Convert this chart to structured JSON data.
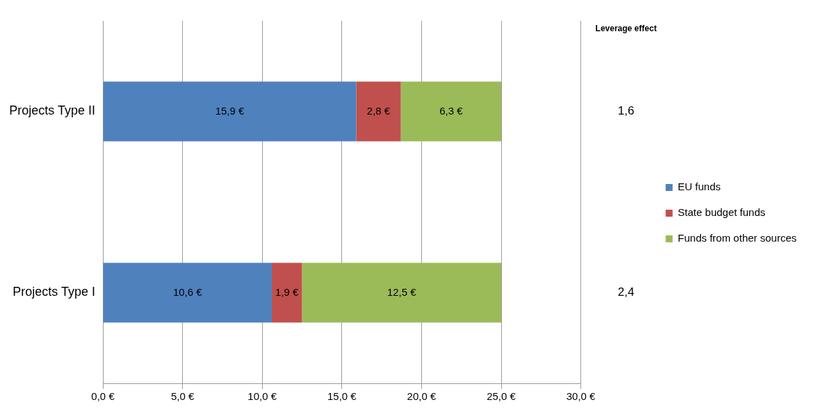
{
  "chart_data": {
    "type": "bar",
    "orientation": "horizontal",
    "stacked": true,
    "categories": [
      "Projects Type II",
      "Projects Type I"
    ],
    "series": [
      {
        "name": "EU funds",
        "color": "#4f81bd",
        "values": [
          15.9,
          10.6
        ],
        "value_labels": [
          "15,9 €",
          "10,6 €"
        ]
      },
      {
        "name": "State budget funds",
        "color": "#c0504d",
        "values": [
          2.8,
          1.9
        ],
        "value_labels": [
          "2,8 €",
          "1,9 €"
        ]
      },
      {
        "name": "Funds from other sources",
        "color": "#9bbb59",
        "values": [
          6.3,
          12.5
        ],
        "value_labels": [
          "6,3 €",
          "12,5 €"
        ]
      }
    ],
    "xlim": [
      0,
      30
    ],
    "xticks": [
      {
        "value": 0,
        "label": "0,0 €"
      },
      {
        "value": 5,
        "label": "5,0 €"
      },
      {
        "value": 10,
        "label": "10,0 €"
      },
      {
        "value": 15,
        "label": "15,0 €"
      },
      {
        "value": 20,
        "label": "20,0 €"
      },
      {
        "value": 25,
        "label": "25,0 €"
      },
      {
        "value": 30,
        "label": "30,0 €"
      }
    ],
    "grid": "x",
    "legend": "right",
    "annotations": [
      "Leverage effect",
      "1,6",
      "2,4"
    ]
  }
}
